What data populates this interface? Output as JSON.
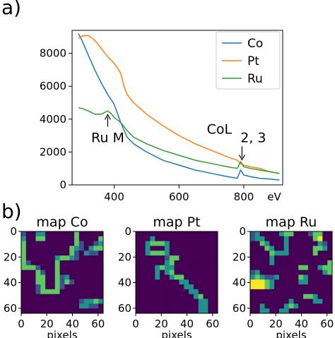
{
  "panel_labels": {
    "a": "a)",
    "b": "b)"
  },
  "colors": {
    "Co": "#1f77b4",
    "Pt": "#ff7f0e",
    "Ru": "#2ca02c"
  },
  "chart_data": [
    {
      "type": "line",
      "xlabel": "eV",
      "xlim": [
        270,
        920
      ],
      "ylim": [
        0,
        9400
      ],
      "xticks": [
        400,
        600,
        800
      ],
      "yticks": [
        0,
        2000,
        4000,
        6000,
        8000
      ],
      "legend_position": "top-right",
      "series": [
        {
          "name": "Co",
          "x": [
            290,
            300,
            320,
            340,
            360,
            380,
            400,
            420,
            440,
            460,
            500,
            550,
            600,
            650,
            700,
            750,
            780,
            790,
            800,
            820,
            850,
            880,
            910
          ],
          "y": [
            9200,
            8800,
            7900,
            7000,
            6200,
            5500,
            4900,
            3800,
            2900,
            2500,
            2000,
            1500,
            1200,
            900,
            700,
            500,
            400,
            900,
            600,
            500,
            400,
            350,
            300
          ]
        },
        {
          "name": "Pt",
          "x": [
            290,
            300,
            320,
            340,
            360,
            380,
            400,
            420,
            430,
            440,
            460,
            500,
            550,
            600,
            650,
            700,
            750,
            780,
            790,
            800,
            820,
            850,
            880,
            910
          ],
          "y": [
            8900,
            9050,
            9100,
            8800,
            8300,
            7800,
            7400,
            6800,
            6000,
            5500,
            5000,
            4300,
            3600,
            3000,
            2500,
            2100,
            1700,
            1500,
            1300,
            1200,
            1100,
            1000,
            800,
            700
          ]
        },
        {
          "name": "Ru",
          "x": [
            290,
            300,
            320,
            340,
            360,
            370,
            380,
            390,
            400,
            420,
            440,
            460,
            500,
            550,
            600,
            650,
            700,
            750,
            780,
            790,
            800,
            820,
            850,
            880,
            910
          ],
          "y": [
            4700,
            4650,
            4500,
            4300,
            4300,
            4400,
            4500,
            4350,
            4100,
            3800,
            3300,
            2900,
            2500,
            2100,
            1800,
            1500,
            1300,
            1100,
            1000,
            1400,
            1100,
            1000,
            900,
            800,
            700
          ]
        }
      ],
      "annotations": [
        {
          "text": "Ru M",
          "x": 380,
          "y": 4400
        },
        {
          "text": "CoL",
          "subscript": "2, 3",
          "x": 790,
          "y": 1400
        }
      ]
    },
    {
      "type": "heatmap",
      "title": "map Co",
      "xlabel": "pixels",
      "xticks": [
        0,
        20,
        40,
        60
      ],
      "yticks": [
        0,
        20,
        40,
        60
      ],
      "extent": [
        0,
        64
      ],
      "colormap": [
        "#440154",
        "#3b528b",
        "#21918c",
        "#5ec962",
        "#fde725"
      ],
      "grid": [
        "10022000000300000",
        "20033000000300003",
        "30000000000310012",
        "30000000003210233",
        "30000000003102110",
        "30000002332100000",
        "31000003000000000",
        "33310003000000000",
        "00031003000000000",
        "00033003120000000",
        "00033003131000000",
        "00013003100000000",
        "00013333000000000",
        "00000000000000000",
        "00000000000012232",
        "00000000000022110",
        "00000000000000000"
      ]
    },
    {
      "type": "heatmap",
      "title": "map Pt",
      "xlabel": "pixels",
      "xticks": [
        0,
        20,
        40,
        60
      ],
      "yticks": [
        0,
        20,
        40,
        60
      ],
      "extent": [
        0,
        64
      ],
      "colormap": [
        "#440154",
        "#3b528b",
        "#21918c",
        "#5ec962",
        "#fde725"
      ],
      "grid": [
        "00000000000000000",
        "00020000000000000",
        "00233320000000000",
        "00200020000000000",
        "00233320000000000",
        "00000013300000000",
        "00000023000000000",
        "00002322000000000",
        "00002023000000000",
        "00002002330000000",
        "00000000022000000",
        "00000000002200000",
        "00000000000220000",
        "00000000000023000",
        "00000000000002200",
        "00000000000002200",
        "00000000000002200"
      ]
    },
    {
      "type": "heatmap",
      "title": "map Ru",
      "xlabel": "pixels",
      "xticks": [
        0,
        20,
        40,
        60
      ],
      "yticks": [
        0,
        20,
        40,
        60
      ],
      "extent": [
        0,
        64
      ],
      "colormap": [
        "#440154",
        "#3b528b",
        "#21918c",
        "#5ec962",
        "#fde725"
      ],
      "grid": [
        "12000023300013300",
        "12200002000003400",
        "00320002000000210",
        "00032002000003320",
        "00003222000003000",
        "00002000000000000",
        "00002000000000003",
        "00000000003300233",
        "12000000000000023",
        "23211200003200000",
        "44432000002200000",
        "44432000000000000",
        "00000000000000000",
        "00000000000332000",
        "00000000200002200",
        "00200002320000000",
        "00220022000000000"
      ]
    }
  ]
}
